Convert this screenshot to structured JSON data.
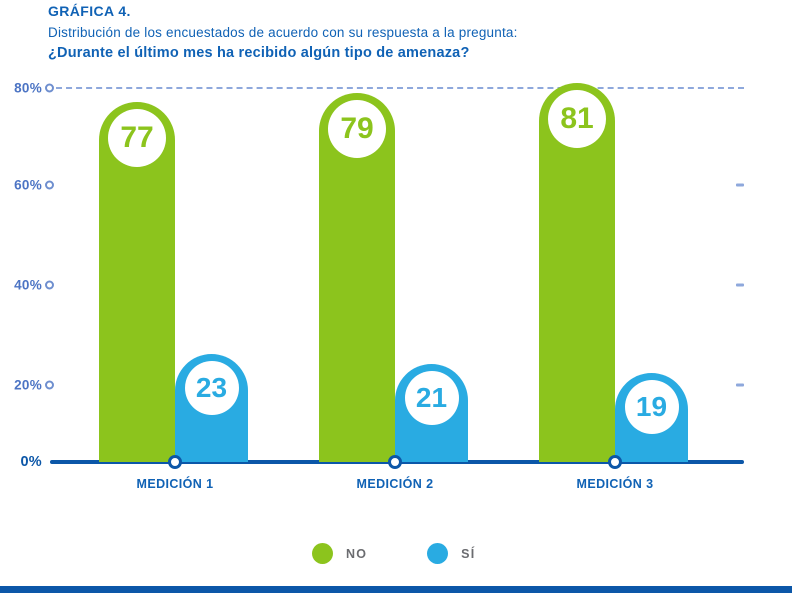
{
  "header": {
    "title": "GRÁFICA 4.",
    "subtitle": "Distribución de los encuestados de acuerdo con su respuesta a la pregunta:",
    "question": "¿Durante el último mes ha recibido algún tipo de amenaza?"
  },
  "chart_data": {
    "type": "bar",
    "title": "Distribución de los encuestados de acuerdo con su respuesta a la pregunta: ¿Durante el último mes ha recibido algún tipo de amenaza?",
    "categories": [
      "MEDICIÓN 1",
      "MEDICIÓN 2",
      "MEDICIÓN 3"
    ],
    "series": [
      {
        "name": "NO",
        "key": "no",
        "values": [
          77,
          79,
          81
        ],
        "color": "#8CC41D"
      },
      {
        "name": "SÍ",
        "key": "si",
        "values": [
          23,
          21,
          19
        ],
        "color": "#29ABE2"
      }
    ],
    "unit": "%",
    "ylim": [
      0,
      80
    ],
    "y_ticks": [
      {
        "label": "80%",
        "value": 80,
        "ring": true,
        "dashed_gridline": true
      },
      {
        "label": "60%",
        "value": 60,
        "ring": true,
        "right_tick": true
      },
      {
        "label": "40%",
        "value": 40,
        "ring": true,
        "right_tick": true
      },
      {
        "label": "20%",
        "value": 20,
        "ring": true,
        "right_tick": true
      },
      {
        "label": "0%",
        "value": 0,
        "ring": false
      }
    ],
    "legend_position": "bottom"
  },
  "colors": {
    "title-blue": "#1062B5",
    "tick-blue": "#4C74C4",
    "dash-blue": "#8EA8DC",
    "axis-blue": "#0C57A8",
    "legend-gray": "#6B6C70",
    "bar-green": "#8CC41D",
    "bar-blue": "#29ABE2",
    "background": "#FFFFFF"
  }
}
